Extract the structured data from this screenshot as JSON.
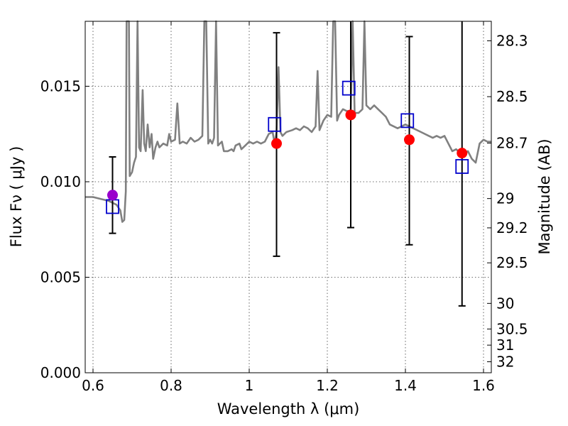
{
  "chart_data": {
    "type": "scatter",
    "title": "",
    "xlabel": "Wavelength  λ (μm)",
    "ylabel": "Flux  Fν  ( μJy )",
    "ylabel_right": "Magnitude (AB)",
    "xlim": [
      0.58,
      1.62
    ],
    "ylim": [
      0.0,
      0.0184
    ],
    "grid": true,
    "legend": "none",
    "x_ticks": [
      0.6,
      0.8,
      1.0,
      1.2,
      1.4,
      1.6
    ],
    "x_tick_labels": [
      "0.6",
      "0.8",
      "1",
      "1.2",
      "1.4",
      "1.6"
    ],
    "y_ticks": [
      0.0,
      0.005,
      0.01,
      0.015
    ],
    "y_tick_labels": [
      "0.000",
      "0.005",
      "0.010",
      "0.015"
    ],
    "right_ticks": [
      {
        "label": "28.3",
        "mag": 28.3
      },
      {
        "label": "28.5",
        "mag": 28.5
      },
      {
        "label": "28.7",
        "mag": 28.7
      },
      {
        "label": "29",
        "mag": 29.0
      },
      {
        "label": "29.2",
        "mag": 29.2
      },
      {
        "label": "29.5",
        "mag": 29.5
      },
      {
        "label": "30",
        "mag": 30.0
      },
      {
        "label": "30.5",
        "mag": 30.5
      },
      {
        "label": "31",
        "mag": 31.0
      },
      {
        "label": "32",
        "mag": 32.0
      }
    ],
    "series": [
      {
        "kind": "line",
        "color": "#808080",
        "points": [
          [
            0.58,
            0.0092
          ],
          [
            0.6,
            0.0092
          ],
          [
            0.62,
            0.0091
          ],
          [
            0.64,
            0.009
          ],
          [
            0.66,
            0.0088
          ],
          [
            0.67,
            0.0085
          ],
          [
            0.675,
            0.0079
          ],
          [
            0.68,
            0.008
          ],
          [
            0.684,
            0.0095
          ],
          [
            0.686,
            0.0184
          ],
          [
            0.692,
            0.0184
          ],
          [
            0.694,
            0.0103
          ],
          [
            0.7,
            0.0105
          ],
          [
            0.705,
            0.011
          ],
          [
            0.71,
            0.0113
          ],
          [
            0.714,
            0.0184
          ],
          [
            0.718,
            0.0118
          ],
          [
            0.722,
            0.0116
          ],
          [
            0.727,
            0.0148
          ],
          [
            0.731,
            0.012
          ],
          [
            0.735,
            0.0116
          ],
          [
            0.74,
            0.013
          ],
          [
            0.745,
            0.0118
          ],
          [
            0.75,
            0.0125
          ],
          [
            0.754,
            0.0112
          ],
          [
            0.76,
            0.0118
          ],
          [
            0.765,
            0.0121
          ],
          [
            0.77,
            0.0118
          ],
          [
            0.78,
            0.012
          ],
          [
            0.79,
            0.0119
          ],
          [
            0.795,
            0.0125
          ],
          [
            0.8,
            0.0121
          ],
          [
            0.81,
            0.0122
          ],
          [
            0.816,
            0.0141
          ],
          [
            0.822,
            0.012
          ],
          [
            0.83,
            0.0121
          ],
          [
            0.84,
            0.012
          ],
          [
            0.85,
            0.0123
          ],
          [
            0.86,
            0.0121
          ],
          [
            0.87,
            0.0122
          ],
          [
            0.88,
            0.0124
          ],
          [
            0.885,
            0.0184
          ],
          [
            0.89,
            0.0184
          ],
          [
            0.895,
            0.012
          ],
          [
            0.9,
            0.0122
          ],
          [
            0.905,
            0.012
          ],
          [
            0.91,
            0.0123
          ],
          [
            0.915,
            0.0184
          ],
          [
            0.92,
            0.0119
          ],
          [
            0.93,
            0.0121
          ],
          [
            0.935,
            0.0116
          ],
          [
            0.945,
            0.0116
          ],
          [
            0.955,
            0.0117
          ],
          [
            0.96,
            0.0116
          ],
          [
            0.965,
            0.0119
          ],
          [
            0.975,
            0.012
          ],
          [
            0.98,
            0.0117
          ],
          [
            0.99,
            0.0119
          ],
          [
            1.0,
            0.0121
          ],
          [
            1.01,
            0.012
          ],
          [
            1.02,
            0.0121
          ],
          [
            1.03,
            0.012
          ],
          [
            1.04,
            0.0121
          ],
          [
            1.05,
            0.0125
          ],
          [
            1.06,
            0.0126
          ],
          [
            1.065,
            0.012
          ],
          [
            1.07,
            0.0126
          ],
          [
            1.075,
            0.016
          ],
          [
            1.08,
            0.0126
          ],
          [
            1.085,
            0.0124
          ],
          [
            1.095,
            0.0126
          ],
          [
            1.11,
            0.0127
          ],
          [
            1.12,
            0.0128
          ],
          [
            1.13,
            0.0127
          ],
          [
            1.14,
            0.0129
          ],
          [
            1.15,
            0.0128
          ],
          [
            1.16,
            0.0126
          ],
          [
            1.17,
            0.0129
          ],
          [
            1.175,
            0.0158
          ],
          [
            1.18,
            0.0127
          ],
          [
            1.19,
            0.0132
          ],
          [
            1.2,
            0.0135
          ],
          [
            1.21,
            0.0134
          ],
          [
            1.215,
            0.0184
          ],
          [
            1.22,
            0.0184
          ],
          [
            1.225,
            0.0132
          ],
          [
            1.23,
            0.0135
          ],
          [
            1.24,
            0.0138
          ],
          [
            1.25,
            0.0137
          ],
          [
            1.26,
            0.0137
          ],
          [
            1.265,
            0.0184
          ],
          [
            1.27,
            0.0136
          ],
          [
            1.28,
            0.0136
          ],
          [
            1.29,
            0.0138
          ],
          [
            1.295,
            0.0184
          ],
          [
            1.3,
            0.014
          ],
          [
            1.31,
            0.0138
          ],
          [
            1.32,
            0.014
          ],
          [
            1.33,
            0.0138
          ],
          [
            1.34,
            0.0136
          ],
          [
            1.35,
            0.0134
          ],
          [
            1.36,
            0.013
          ],
          [
            1.38,
            0.0128
          ],
          [
            1.4,
            0.013
          ],
          [
            1.42,
            0.0128
          ],
          [
            1.44,
            0.0126
          ],
          [
            1.46,
            0.0124
          ],
          [
            1.47,
            0.0123
          ],
          [
            1.48,
            0.0124
          ],
          [
            1.49,
            0.0123
          ],
          [
            1.5,
            0.0124
          ],
          [
            1.51,
            0.012
          ],
          [
            1.52,
            0.0116
          ],
          [
            1.53,
            0.0117
          ],
          [
            1.54,
            0.0115
          ],
          [
            1.55,
            0.0114
          ],
          [
            1.56,
            0.0116
          ],
          [
            1.57,
            0.0112
          ],
          [
            1.58,
            0.011
          ],
          [
            1.59,
            0.012
          ],
          [
            1.6,
            0.0122
          ],
          [
            1.61,
            0.0121
          ],
          [
            1.62,
            0.0121
          ]
        ]
      },
      {
        "kind": "errorbar",
        "color": "#000000",
        "points": [
          {
            "x": 0.65,
            "ylow": 0.0073,
            "yhigh": 0.0113
          },
          {
            "x": 1.07,
            "ylow": 0.0061,
            "yhigh": 0.0178
          },
          {
            "x": 1.26,
            "ylow": 0.0076,
            "yhigh": 0.0184
          },
          {
            "x": 1.41,
            "ylow": 0.0067,
            "yhigh": 0.0176
          },
          {
            "x": 1.545,
            "ylow": 0.0035,
            "yhigh": 0.0184
          }
        ]
      },
      {
        "kind": "square",
        "color": "#0000cc",
        "points": [
          {
            "x": 0.65,
            "y": 0.0087
          },
          {
            "x": 1.065,
            "y": 0.013
          },
          {
            "x": 1.255,
            "y": 0.0149
          },
          {
            "x": 1.405,
            "y": 0.0132
          },
          {
            "x": 1.545,
            "y": 0.0108
          }
        ]
      },
      {
        "kind": "circle",
        "color": "#ff0000",
        "points": [
          {
            "x": 0.65,
            "y": 0.0093,
            "color": "#9900cc"
          },
          {
            "x": 1.07,
            "y": 0.012
          },
          {
            "x": 1.26,
            "y": 0.0135
          },
          {
            "x": 1.41,
            "y": 0.0122
          },
          {
            "x": 1.545,
            "y": 0.0115
          }
        ]
      }
    ]
  }
}
